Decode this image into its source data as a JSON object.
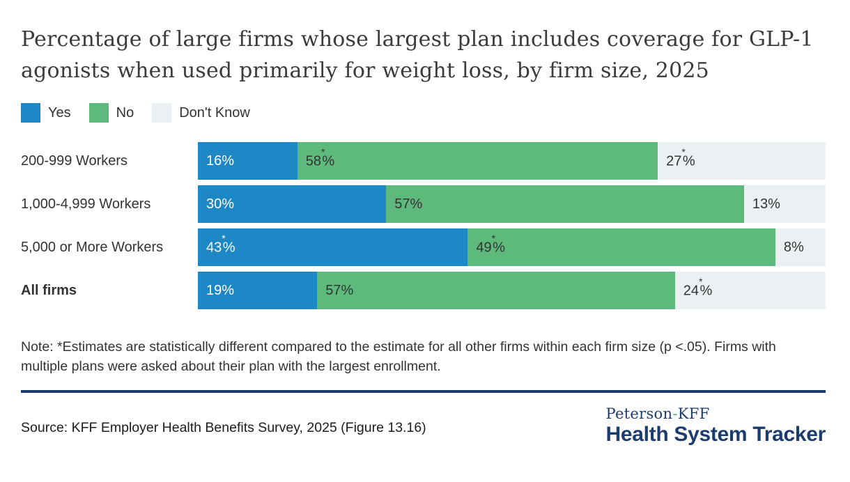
{
  "title": "Percentage of large firms whose largest plan includes coverage for GLP-1 agonists when used primarily for weight loss, by firm size, 2025",
  "chart_data": {
    "type": "bar",
    "stacked": true,
    "orientation": "horizontal",
    "value_suffix": "%",
    "xlim": [
      0,
      100
    ],
    "legend_position": "top",
    "categories": [
      {
        "label": "200-999 Workers",
        "bold": false
      },
      {
        "label": "1,000-4,999 Workers",
        "bold": false
      },
      {
        "label": "5,000 or More Workers",
        "bold": false
      },
      {
        "label": "All firms",
        "bold": true
      }
    ],
    "series": [
      {
        "name": "Yes",
        "color": "#1e87c5",
        "label_color": "#ffffff",
        "values": [
          16,
          30,
          43,
          19
        ],
        "asterisk": [
          false,
          false,
          true,
          false
        ]
      },
      {
        "name": "No",
        "color": "#5eba7c",
        "label_color": "#333333",
        "values": [
          58,
          57,
          49,
          57
        ],
        "asterisk": [
          true,
          false,
          true,
          false
        ]
      },
      {
        "name": "Don't Know",
        "color": "#ebf0f2",
        "label_color": "#333333",
        "values": [
          27,
          13,
          8,
          24
        ],
        "asterisk": [
          true,
          false,
          false,
          true
        ]
      }
    ]
  },
  "note": "Note: *Estimates are statistically different compared to the estimate for all other firms within each firm size (p <.05). Firms with multiple plans were asked about their plan with the largest enrollment.",
  "source": "Source: KFF Employer Health Benefits Survey, 2025 (Figure 13.16)",
  "logo": {
    "top_left": "Peterson",
    "top_sep": "-",
    "top_right": "KFF",
    "bottom": "Health System Tracker"
  },
  "colors": {
    "accent_blue": "#1e87c5",
    "accent_green": "#5eba7c",
    "neutral_light": "#ebf0f2",
    "navy": "#1d3c6e",
    "text": "#333333"
  }
}
